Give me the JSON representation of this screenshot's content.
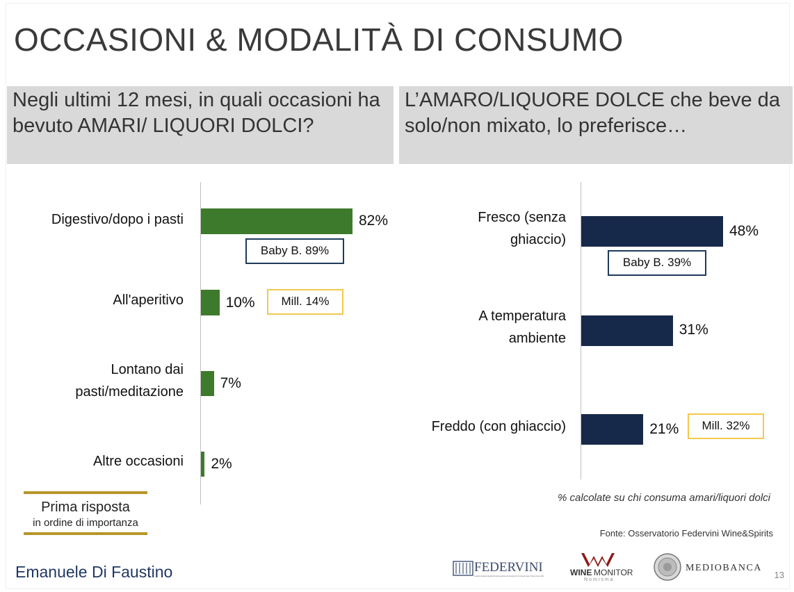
{
  "title": "OCCASIONI & MODALITÀ DI CONSUMO",
  "question_left": " Negli ultimi 12 mesi, in quali occasioni ha bevuto AMARI/ LIQUORI DOLCI?",
  "question_right": "L’AMARO/LIQUORE DOLCE che beve da solo/non mixato, lo preferisce…",
  "colors": {
    "left_bars": "#3d7a2c",
    "right_bars": "#17294a",
    "baby_border": "#1f3a5a",
    "mill_border": "#f2c94c",
    "legend_line": "#b8952a",
    "author": "#1f3864"
  },
  "chart_data": [
    {
      "type": "bar",
      "orientation": "horizontal",
      "title": "Negli ultimi 12 mesi, in quali occasioni ha bevuto AMARI/ LIQUORI DOLCI?",
      "categories": [
        "Digestivo/dopo i pasti",
        "All'aperitivo",
        "Lontano dai pasti/meditazione",
        "Altre occasioni"
      ],
      "values": [
        82,
        10,
        7,
        2
      ],
      "value_labels": [
        "82%",
        "10%",
        "7%",
        "2%"
      ],
      "unit": "%",
      "xlim": [
        0,
        100
      ],
      "annotations": [
        {
          "category": "Digestivo/dopo i pasti",
          "label": "Baby B. 89%",
          "style": "navy-box"
        },
        {
          "category": "All'aperitivo",
          "label": "Mill. 14%",
          "style": "gold-box"
        }
      ]
    },
    {
      "type": "bar",
      "orientation": "horizontal",
      "title": "L’AMARO/LIQUORE DOLCE che beve da solo/non mixato, lo preferisce…",
      "categories": [
        "Fresco (senza ghiaccio)",
        "A temperatura ambiente",
        "Freddo (con ghiaccio)"
      ],
      "values": [
        48,
        31,
        21
      ],
      "value_labels": [
        "48%",
        "31%",
        "21%"
      ],
      "unit": "%",
      "xlim": [
        0,
        100
      ],
      "annotations": [
        {
          "category": "Fresco (senza ghiaccio)",
          "label": "Baby B. 39%",
          "style": "navy-box"
        },
        {
          "category": "Freddo (con ghiaccio)",
          "label": "Mill. 32%",
          "style": "gold-box"
        }
      ]
    }
  ],
  "legend": {
    "line1": "Prima risposta",
    "line2": "in ordine di importanza"
  },
  "pct_note": "% calcolate su chi consuma amari/liquori dolci",
  "source": "Fonte: Osservatorio Federvini Wine&Spirits",
  "author": "Emanuele Di Faustino",
  "page_number": "13",
  "logos": {
    "federvini": "FEDERVINI",
    "federvini_sub": "Federazione Italiana Industriali Produttori, Esportatori ed Importatori di Vini, Acquaviti, Liquori, Sciroppi, Aceti e Affini",
    "winemonitor_wine": "WINE",
    "winemonitor_monitor": "MONITOR",
    "winemonitor_sub": "Nomisma",
    "mediobanca": "MEDIOBANCA"
  }
}
